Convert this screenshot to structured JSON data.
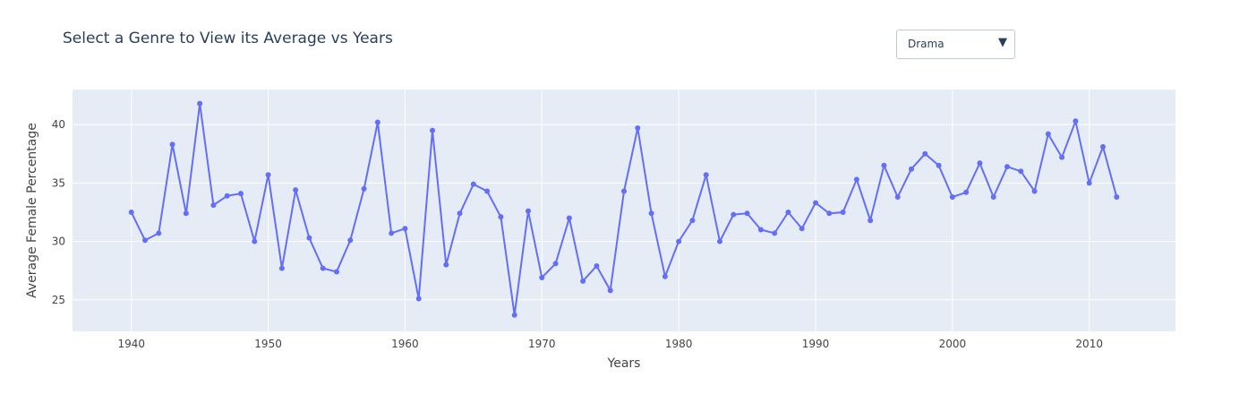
{
  "title": "Select a Genre to View its Average vs Years",
  "dropdown": {
    "selected": "Drama",
    "arrow_icon": "triangle-down-icon"
  },
  "colors": {
    "plot_background": "#e5ecf6",
    "grid": "#ffffff",
    "line": "#636efa",
    "text": "#444444",
    "title": "#2a3f5f"
  },
  "chart_data": {
    "type": "line",
    "title": "Select a Genre to View its Average vs Years",
    "xlabel": "Years",
    "ylabel": "Average Female Percentage",
    "xlim": [
      1935.7,
      1916.3
    ],
    "ylim": [
      22.3,
      43.0
    ],
    "x_ticks": [
      1940,
      1950,
      1960,
      1970,
      1980,
      1990,
      2000,
      2010
    ],
    "y_ticks": [
      25,
      30,
      35,
      40
    ],
    "grid": true,
    "series": [
      {
        "x": [
          1940,
          1941,
          1942,
          1943,
          1944,
          1945,
          1946,
          1947,
          1948,
          1949,
          1950,
          1951,
          1952,
          1953,
          1954,
          1955,
          1956,
          1957,
          1958,
          1959,
          1960,
          1961,
          1962,
          1963,
          1964,
          1965,
          1966,
          1967,
          1968,
          1969,
          1970,
          1971,
          1972,
          1973,
          1974,
          1975,
          1976,
          1977,
          1978,
          1979,
          1980,
          1981,
          1982,
          1983,
          1984,
          1985,
          1986,
          1987,
          1988,
          1989,
          1990,
          1991,
          1992,
          1993,
          1994,
          1995,
          1996,
          1997,
          1998,
          1999,
          2000,
          2001,
          2002,
          2003,
          2004,
          2005,
          2006,
          2007,
          2008,
          2009,
          2010,
          2011,
          2012
        ],
        "y": [
          32.5,
          30.1,
          30.7,
          38.3,
          32.4,
          41.8,
          33.1,
          33.9,
          34.1,
          30.0,
          35.7,
          27.7,
          34.4,
          30.3,
          27.7,
          27.4,
          30.1,
          34.5,
          40.2,
          30.7,
          31.1,
          25.1,
          39.5,
          28.0,
          32.4,
          34.9,
          34.3,
          32.1,
          23.7,
          32.6,
          26.9,
          28.1,
          32.0,
          26.6,
          27.9,
          25.8,
          34.3,
          39.7,
          32.4,
          27.0,
          30.0,
          31.8,
          35.7,
          30.0,
          32.3,
          32.4,
          31.0,
          30.7,
          32.5,
          31.1,
          33.3,
          32.4,
          32.5,
          35.3,
          31.8,
          36.5,
          33.8,
          36.2,
          37.5,
          36.5,
          33.8,
          34.2,
          36.7,
          33.8,
          36.4,
          36.0,
          34.3,
          39.2,
          37.2,
          40.3,
          35.0,
          38.1,
          33.8
        ]
      }
    ]
  }
}
